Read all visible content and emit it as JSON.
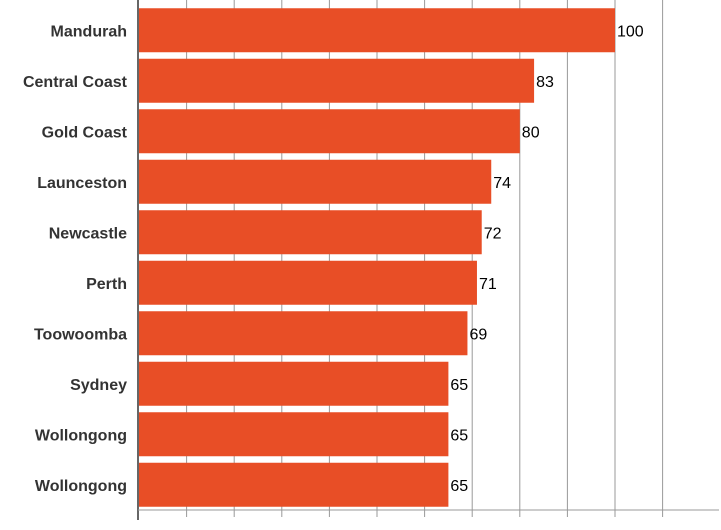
{
  "chart_data": {
    "type": "bar",
    "orientation": "horizontal",
    "title": "",
    "xlabel": "",
    "ylabel": "",
    "categories": [
      "Mandurah",
      "Central Coast",
      "Gold Coast",
      "Launceston",
      "Newcastle",
      "Perth",
      "Toowoomba",
      "Sydney",
      "Wollongong",
      "Wollongong"
    ],
    "values": [
      100,
      83,
      80,
      74,
      72,
      71,
      69,
      65,
      65,
      65
    ],
    "xlim": [
      0,
      110
    ],
    "grid": true,
    "legend": "none",
    "bar_color": "#e84e26",
    "grid_color": "#999999",
    "axis_color": "#666666"
  }
}
